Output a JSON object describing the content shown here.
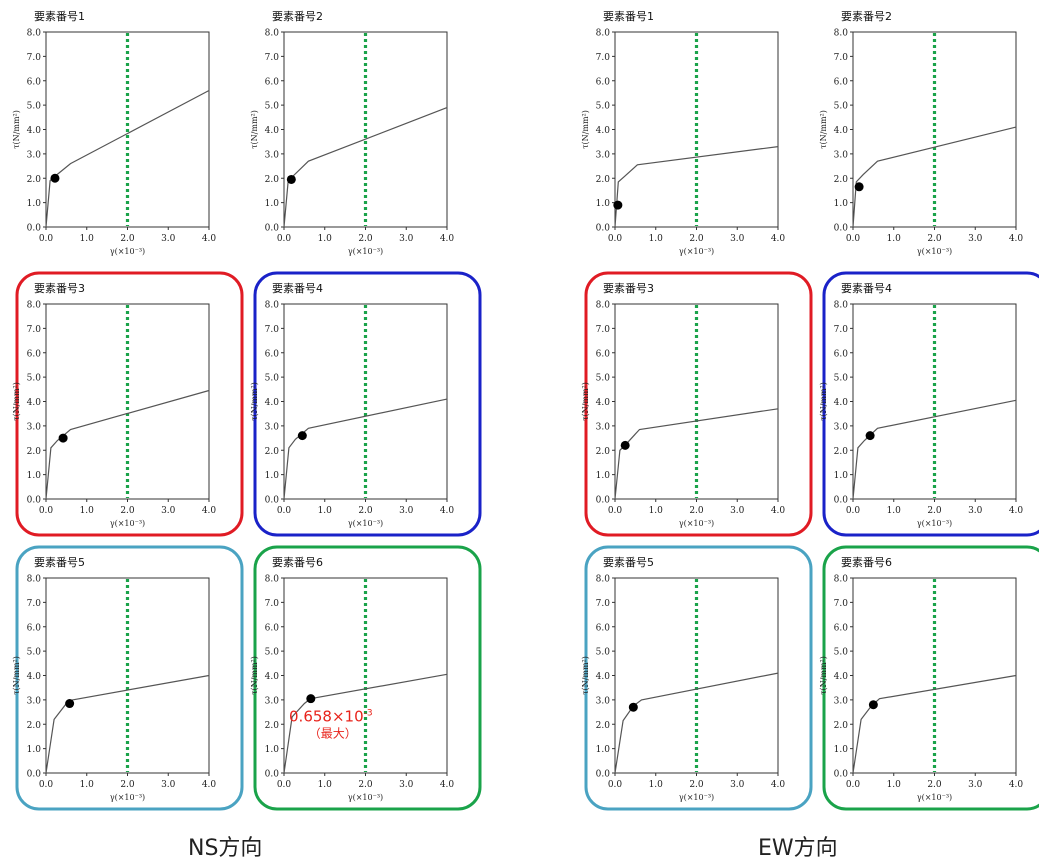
{
  "groups": [
    {
      "label": "NS方向",
      "panels": [
        {
          "title": "要素番号1",
          "frame": "",
          "curve": [
            [
              0,
              0
            ],
            [
              0.1,
              1.9
            ],
            [
              0.2,
              2.05
            ],
            [
              0.6,
              2.6
            ],
            [
              4.0,
              5.6
            ]
          ],
          "point": [
            0.22,
            2.0
          ]
        },
        {
          "title": "要素番号2",
          "frame": "",
          "curve": [
            [
              0,
              0
            ],
            [
              0.1,
              1.85
            ],
            [
              0.2,
              2.05
            ],
            [
              0.6,
              2.7
            ],
            [
              4.0,
              4.9
            ]
          ],
          "point": [
            0.18,
            1.95
          ]
        },
        {
          "title": "要素番号3",
          "frame": "#e01b24",
          "curve": [
            [
              0,
              0
            ],
            [
              0.12,
              2.1
            ],
            [
              0.28,
              2.4
            ],
            [
              0.6,
              2.85
            ],
            [
              4.0,
              4.45
            ]
          ],
          "point": [
            0.42,
            2.5
          ]
        },
        {
          "title": "要素番号4",
          "frame": "#1a22c8",
          "curve": [
            [
              0,
              0
            ],
            [
              0.12,
              2.1
            ],
            [
              0.28,
              2.45
            ],
            [
              0.6,
              2.9
            ],
            [
              4.0,
              4.1
            ]
          ],
          "point": [
            0.45,
            2.6
          ]
        },
        {
          "title": "要素番号5",
          "frame": "#4aa3c2",
          "curve": [
            [
              0,
              0
            ],
            [
              0.2,
              2.2
            ],
            [
              0.5,
              2.85
            ],
            [
              0.65,
              3.0
            ],
            [
              4.0,
              4.0
            ]
          ],
          "point": [
            0.58,
            2.85
          ]
        },
        {
          "title": "要素番号6",
          "frame": "#1aa34a",
          "curve": [
            [
              0,
              0
            ],
            [
              0.2,
              2.3
            ],
            [
              0.5,
              2.85
            ],
            [
              0.65,
              3.05
            ],
            [
              4.0,
              4.05
            ]
          ],
          "point": [
            0.658,
            3.05
          ],
          "annotation": {
            "value": "0.658×10",
            "exp": "-3",
            "note": "（最大）"
          }
        }
      ]
    },
    {
      "label": "EW方向",
      "panels": [
        {
          "title": "要素番号1",
          "frame": "",
          "curve": [
            [
              0,
              0
            ],
            [
              0.08,
              1.85
            ],
            [
              0.25,
              2.1
            ],
            [
              0.55,
              2.55
            ],
            [
              4.0,
              3.3
            ]
          ],
          "point": [
            0.07,
            0.9
          ]
        },
        {
          "title": "要素番号2",
          "frame": "",
          "curve": [
            [
              0,
              0
            ],
            [
              0.08,
              1.85
            ],
            [
              0.25,
              2.15
            ],
            [
              0.6,
              2.7
            ],
            [
              4.0,
              4.1
            ]
          ],
          "point": [
            0.15,
            1.65
          ]
        },
        {
          "title": "要素番号3",
          "frame": "#e01b24",
          "curve": [
            [
              0,
              0
            ],
            [
              0.12,
              2.0
            ],
            [
              0.3,
              2.3
            ],
            [
              0.6,
              2.85
            ],
            [
              4.0,
              3.7
            ]
          ],
          "point": [
            0.25,
            2.2
          ]
        },
        {
          "title": "要素番号4",
          "frame": "#1a22c8",
          "curve": [
            [
              0,
              0
            ],
            [
              0.12,
              2.1
            ],
            [
              0.28,
              2.4
            ],
            [
              0.6,
              2.9
            ],
            [
              4.0,
              4.05
            ]
          ],
          "point": [
            0.42,
            2.6
          ]
        },
        {
          "title": "要素番号5",
          "frame": "#4aa3c2",
          "curve": [
            [
              0,
              0
            ],
            [
              0.2,
              2.15
            ],
            [
              0.45,
              2.75
            ],
            [
              0.65,
              3.0
            ],
            [
              4.0,
              4.1
            ]
          ],
          "point": [
            0.45,
            2.7
          ]
        },
        {
          "title": "要素番号6",
          "frame": "#1aa34a",
          "curve": [
            [
              0,
              0
            ],
            [
              0.2,
              2.2
            ],
            [
              0.45,
              2.75
            ],
            [
              0.65,
              3.05
            ],
            [
              4.0,
              4.0
            ]
          ],
          "point": [
            0.5,
            2.8
          ]
        }
      ]
    }
  ],
  "chart_data": {
    "type": "line",
    "xlabel": "γ(×10⁻³)",
    "ylabel": "τ(N/mm²)",
    "xlim": [
      0,
      4.0
    ],
    "ylim": [
      0,
      8.0
    ],
    "xticks": [
      "0.0",
      "1.0",
      "2.0",
      "3.0",
      "4.0"
    ],
    "yticks": [
      "0.0",
      "1.0",
      "2.0",
      "3.0",
      "4.0",
      "5.0",
      "6.0",
      "7.0",
      "8.0"
    ],
    "reference_line_x": 2.0,
    "reference_line_color": "#1aa34a",
    "curve_color": "#555555",
    "point_color": "#000000",
    "annotation_color": "#e8231b"
  }
}
